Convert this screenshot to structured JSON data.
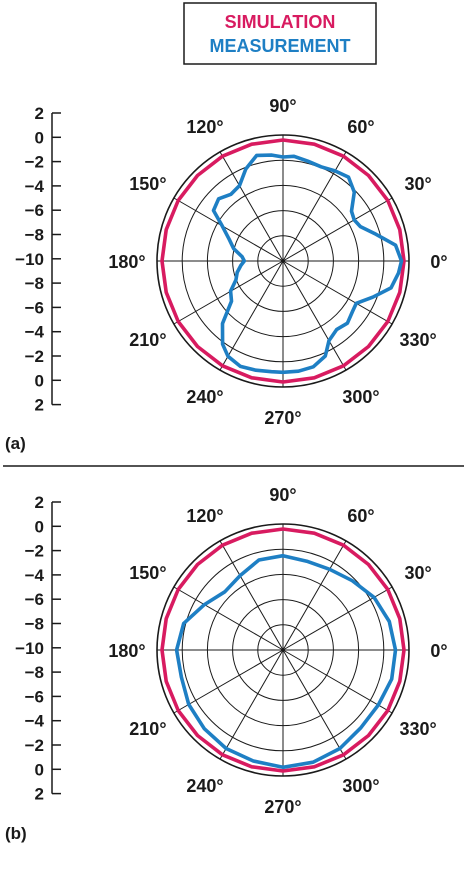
{
  "legend": {
    "entries": [
      {
        "label": "SIMULATION",
        "color": "#d81b60"
      },
      {
        "label": "MEASUREMENT",
        "color": "#1e7fc4"
      }
    ]
  },
  "chart_data": [
    {
      "type": "polar-line",
      "panel_label": "(a)",
      "r_range": [
        -10,
        2
      ],
      "r_scale_labels": [
        "2",
        "0",
        "−2",
        "−4",
        "−6",
        "−8",
        "−10",
        "−8",
        "−6",
        "−4",
        "−2",
        "0",
        "2"
      ],
      "angle_ticks": [
        0,
        30,
        60,
        90,
        120,
        150,
        180,
        210,
        240,
        270,
        300,
        330
      ],
      "angle_labels": [
        "0°",
        "30°",
        "60°",
        "90°",
        "120°",
        "150°",
        "180°",
        "210°",
        "240°",
        "270°",
        "300°",
        "330°"
      ],
      "grid": true,
      "series": [
        {
          "name": "SIMULATION",
          "color": "#d81b60",
          "angles": [
            0,
            15,
            30,
            45,
            60,
            75,
            90,
            105,
            120,
            135,
            150,
            165,
            180,
            195,
            210,
            225,
            240,
            255,
            270,
            285,
            300,
            315,
            330,
            345,
            360
          ],
          "values": [
            0,
            0,
            0,
            0,
            0,
            0,
            0,
            0,
            0,
            0,
            0,
            0,
            0,
            0,
            0,
            0,
            0,
            0,
            0,
            0,
            0,
            0,
            0,
            0,
            0
          ]
        },
        {
          "name": "MEASUREMENT",
          "color": "#1e7fc4",
          "angles": [
            0,
            8,
            16,
            24,
            30,
            36,
            44,
            52,
            60,
            68,
            76,
            84,
            90,
            96,
            104,
            112,
            120,
            128,
            136,
            144,
            150,
            158,
            166,
            174,
            180,
            186,
            194,
            202,
            210,
            218,
            226,
            234,
            240,
            248,
            256,
            264,
            270,
            278,
            286,
            294,
            300,
            308,
            316,
            324,
            330,
            338,
            346,
            354,
            360
          ],
          "values": [
            -0.2,
            -0.6,
            -2.0,
            -3.0,
            -3.2,
            -3.0,
            -1.8,
            -1.2,
            -1.4,
            -1.6,
            -1.5,
            -1.3,
            -1.4,
            -1.2,
            -1.0,
            -1.8,
            -2.8,
            -3.0,
            -2.6,
            -2.9,
            -4.2,
            -5.2,
            -5.8,
            -6.6,
            -6.8,
            -6.5,
            -6.1,
            -5.8,
            -5.0,
            -4.6,
            -2.8,
            -1.5,
            -0.9,
            -0.6,
            -0.7,
            -0.8,
            -0.8,
            -0.8,
            -0.9,
            -1.4,
            -2.4,
            -2.8,
            -2.6,
            -2.9,
            -3.0,
            -2.0,
            -0.8,
            -0.4,
            -0.2
          ]
        }
      ]
    },
    {
      "type": "polar-line",
      "panel_label": "(b)",
      "r_range": [
        -10,
        2
      ],
      "r_scale_labels": [
        "2",
        "0",
        "−2",
        "−4",
        "−6",
        "−8",
        "−10",
        "−8",
        "−6",
        "−4",
        "−2",
        "0",
        "2"
      ],
      "angle_ticks": [
        0,
        30,
        60,
        90,
        120,
        150,
        180,
        210,
        240,
        270,
        300,
        330
      ],
      "angle_labels": [
        "0°",
        "30°",
        "60°",
        "90°",
        "120°",
        "150°",
        "180°",
        "210°",
        "240°",
        "270°",
        "300°",
        "330°"
      ],
      "grid": true,
      "series": [
        {
          "name": "SIMULATION",
          "color": "#d81b60",
          "angles": [
            0,
            15,
            30,
            45,
            60,
            75,
            90,
            105,
            120,
            135,
            150,
            165,
            180,
            195,
            210,
            225,
            240,
            255,
            270,
            285,
            300,
            315,
            330,
            345,
            360
          ],
          "values": [
            0,
            0,
            0,
            0,
            0,
            0,
            0,
            0,
            0,
            0,
            0,
            0,
            0,
            0,
            0,
            0,
            0,
            0,
            0,
            0,
            0,
            0,
            0,
            0,
            0
          ]
        },
        {
          "name": "MEASUREMENT",
          "color": "#1e7fc4",
          "angles": [
            0,
            15,
            30,
            45,
            60,
            75,
            90,
            105,
            120,
            135,
            150,
            165,
            180,
            195,
            210,
            225,
            240,
            255,
            270,
            285,
            300,
            315,
            330,
            345,
            360
          ],
          "values": [
            -0.7,
            -0.9,
            -1.3,
            -1.9,
            -2.3,
            -2.4,
            -2.2,
            -2.3,
            -2.9,
            -3.2,
            -2.5,
            -1.5,
            -1.2,
            -1.3,
            -1.0,
            -0.8,
            -0.6,
            -0.5,
            -0.3,
            -0.4,
            -0.6,
            -0.9,
            -0.9,
            -0.7,
            -0.7
          ]
        }
      ]
    }
  ]
}
